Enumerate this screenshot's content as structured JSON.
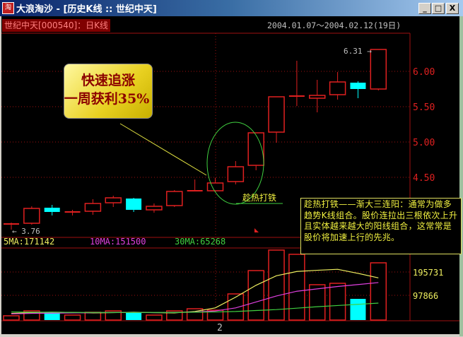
{
  "window": {
    "title": "大浪淘沙 - [历史K线 :: 世纪中天]",
    "icon": "app-logo-icon",
    "buttons": [
      "_",
      "□",
      "X"
    ]
  },
  "header": {
    "stock": "世纪中天[000540]：日K线",
    "range": "2004.01.07～2004.02.12(19日)"
  },
  "annotation": {
    "line1": "快速追涨",
    "line2": "一周获利35%"
  },
  "pattern_label": "趁热打铁",
  "callout": "趁热打铁——渐大三连阳：通常为做多趋势K线组合。股价连拉出三根依次上升且实体越来越大的阳线组合，这常常是股价将加速上行的先兆。",
  "colors": {
    "up": "#e02020",
    "down": "#00ffff",
    "ma5": "#f0f060",
    "ma10": "#e040e0",
    "ma30": "#40d040",
    "grid": "#a01010"
  },
  "chart_data": [
    {
      "type": "candlestick",
      "ylim": [
        3.7,
        6.35
      ],
      "yticks": [
        "4.50",
        "5.00",
        "5.50",
        "6.00"
      ],
      "ytick_values": [
        4.5,
        5.0,
        5.5,
        6.0
      ],
      "high_label": "6.31",
      "low_label": "3.76",
      "xtick": "2",
      "open": [
        3.84,
        3.85,
        4.07,
        4.0,
        4.02,
        4.14,
        4.2,
        4.04,
        4.1,
        4.3,
        4.31,
        4.44,
        4.67,
        5.14,
        5.64,
        5.62,
        5.67,
        5.84,
        5.75
      ],
      "close": [
        3.84,
        4.06,
        4.01,
        4.01,
        4.13,
        4.21,
        4.04,
        4.09,
        4.3,
        4.31,
        4.42,
        4.65,
        5.13,
        5.64,
        5.65,
        5.66,
        5.85,
        5.75,
        6.31
      ],
      "high": [
        3.86,
        4.09,
        4.11,
        4.04,
        4.19,
        4.24,
        4.21,
        4.13,
        4.32,
        4.47,
        4.49,
        4.73,
        5.13,
        5.64,
        6.15,
        5.88,
        5.99,
        5.86,
        6.31
      ],
      "low": [
        3.76,
        3.83,
        3.96,
        3.96,
        3.97,
        4.08,
        4.01,
        4.0,
        4.08,
        4.3,
        4.3,
        4.4,
        4.6,
        4.99,
        5.51,
        5.42,
        5.6,
        5.62,
        5.73
      ]
    },
    {
      "type": "bar",
      "yticks": [
        "195731",
        "97866"
      ],
      "ytick_values": [
        195731,
        97866
      ],
      "legend": [
        {
          "label": "5MA:",
          "value": "171142"
        },
        {
          "label": "10MA:",
          "value": "151500"
        },
        {
          "label": "30MA:",
          "value": "65268"
        }
      ],
      "volume": [
        12000,
        32600,
        26700,
        14800,
        26700,
        32600,
        23700,
        14800,
        32600,
        41500,
        35600,
        103800,
        201700,
        287700,
        270000,
        142400,
        148300,
        83000,
        234300
      ],
      "ma5": [
        22000,
        25000,
        27000,
        26000,
        24000,
        25000,
        27000,
        25000,
        24000,
        30000,
        45000,
        90000,
        140000,
        180000,
        198000,
        203000,
        207000,
        190000,
        171142
      ],
      "ma10": [
        20000,
        22000,
        23000,
        24000,
        25000,
        26000,
        26000,
        25000,
        26000,
        28000,
        32000,
        45000,
        70000,
        95000,
        115000,
        125000,
        135000,
        143000,
        151500
      ],
      "ma30": [
        28000,
        27000,
        27000,
        26000,
        26000,
        26000,
        26000,
        26000,
        26000,
        27000,
        28000,
        30000,
        34000,
        38000,
        44000,
        50000,
        55000,
        60000,
        65268
      ]
    }
  ]
}
